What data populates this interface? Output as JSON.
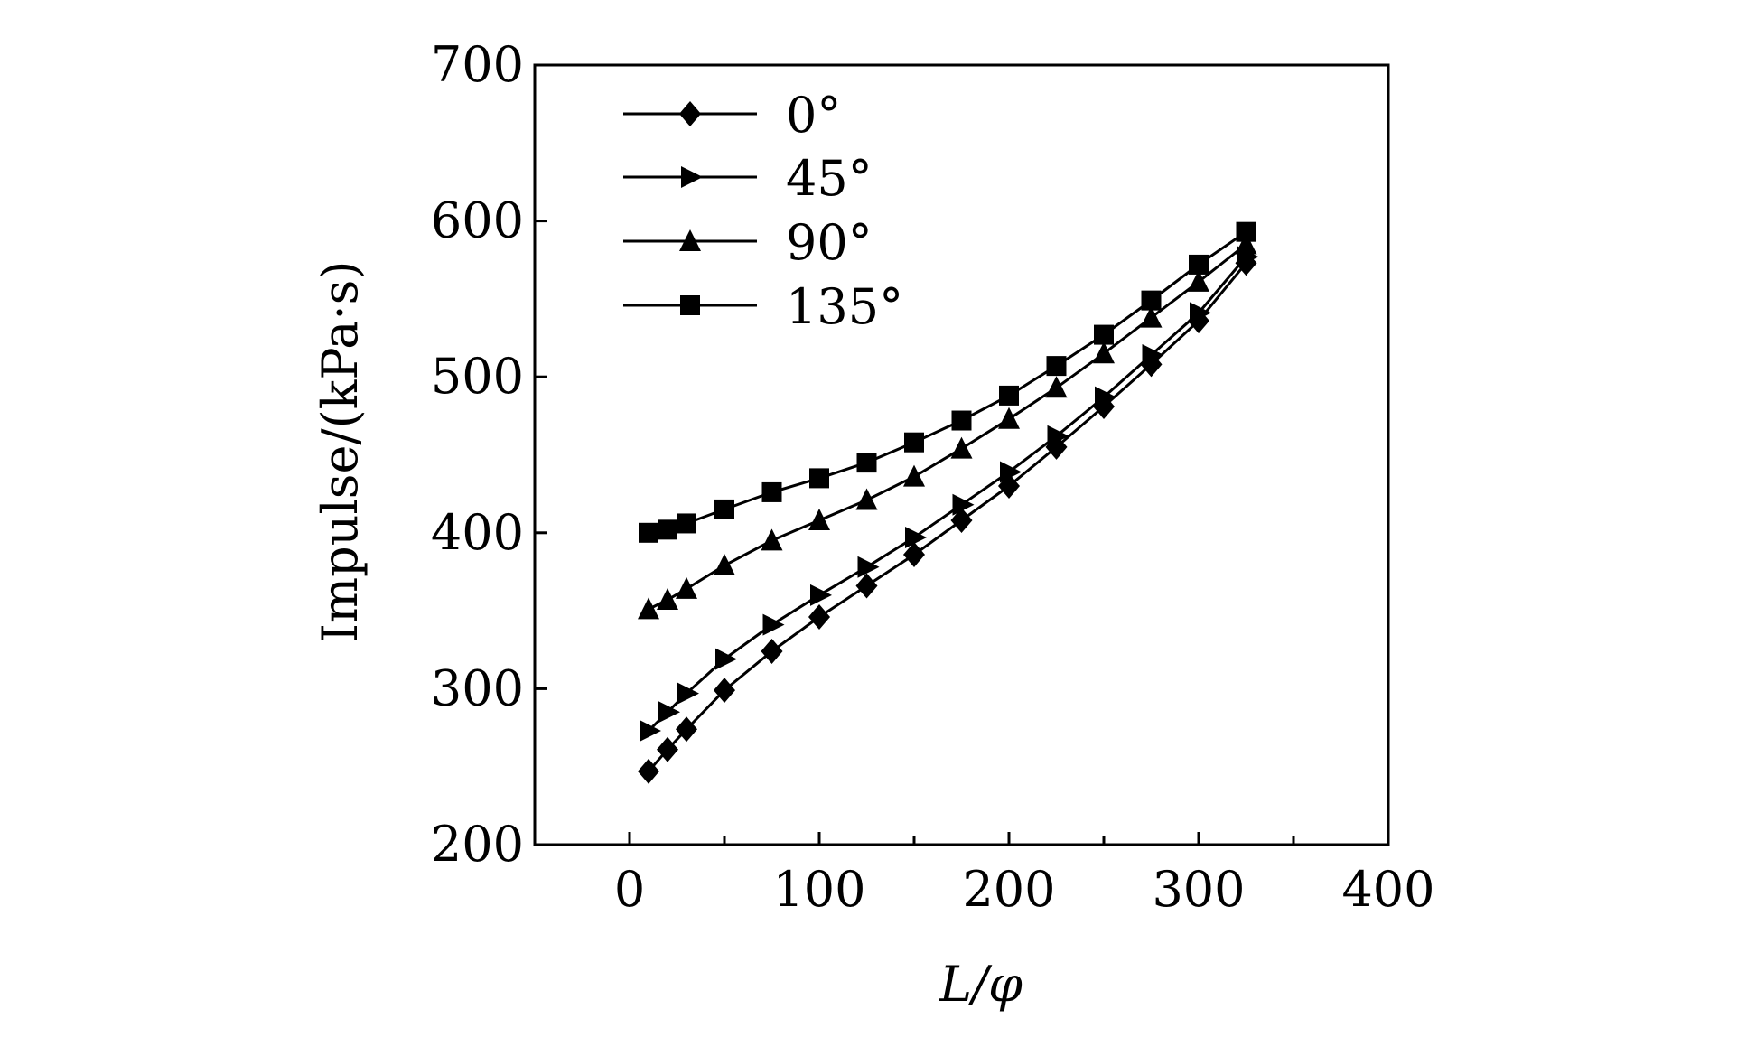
{
  "chart_data": {
    "type": "line",
    "xlabel": "L/φ",
    "ylabel": "Impulse/(kPa·s)",
    "xlim": [
      -50,
      400
    ],
    "ylim": [
      200,
      700
    ],
    "xticks": [
      0,
      100,
      200,
      300,
      400
    ],
    "yticks": [
      200,
      300,
      400,
      500,
      600,
      700
    ],
    "grid": false,
    "legend_position": "top-left",
    "line_color": "#000000",
    "series": [
      {
        "name": "0°",
        "marker": "diamond",
        "x": [
          10,
          20,
          30,
          50,
          75,
          100,
          125,
          150,
          175,
          200,
          225,
          250,
          275,
          300,
          325
        ],
        "values": [
          247,
          261,
          274,
          299,
          324,
          346,
          366,
          386,
          408,
          430,
          455,
          481,
          508,
          536,
          573
        ]
      },
      {
        "name": "45°",
        "marker": "triangle-right",
        "x": [
          10,
          20,
          30,
          50,
          75,
          100,
          125,
          150,
          175,
          200,
          225,
          250,
          275,
          300,
          325
        ],
        "values": [
          273,
          285,
          297,
          319,
          341,
          360,
          378,
          397,
          418,
          439,
          462,
          487,
          514,
          541,
          577
        ]
      },
      {
        "name": "90°",
        "marker": "triangle-up",
        "x": [
          10,
          20,
          30,
          50,
          75,
          100,
          125,
          150,
          175,
          200,
          225,
          250,
          275,
          300,
          325
        ],
        "values": [
          351,
          357,
          364,
          379,
          395,
          408,
          421,
          436,
          454,
          473,
          493,
          515,
          538,
          561,
          585
        ]
      },
      {
        "name": "135°",
        "marker": "square",
        "x": [
          10,
          20,
          30,
          50,
          75,
          100,
          125,
          150,
          175,
          200,
          225,
          250,
          275,
          300,
          325
        ],
        "values": [
          400,
          402,
          406,
          415,
          426,
          435,
          445,
          458,
          472,
          488,
          507,
          527,
          549,
          572,
          593
        ]
      }
    ]
  }
}
